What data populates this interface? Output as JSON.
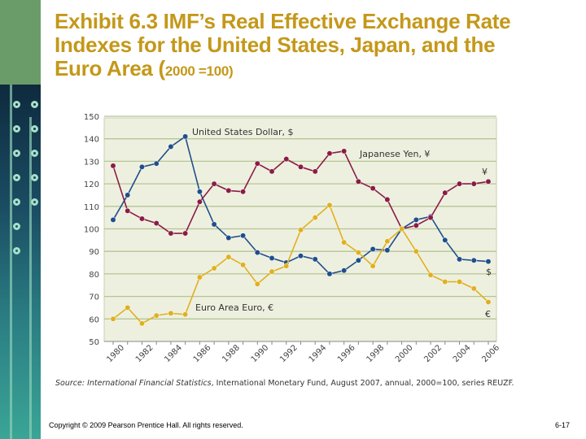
{
  "slide": {
    "title_main": "Exhibit 6.3  IMF’s Real Effective Exchange Rate Indexes for the United States, Japan, and the Euro Area (",
    "title_small": "2000 =100)",
    "source_label": "Source:",
    "source_italic": "International Financial Statistics",
    "source_rest": ", International Monetary Fund, August 2007, annual, 2000=100, series REUZF.",
    "copyright": "Copyright © 2009 Pearson Prentice Hall. All rights reserved.",
    "page_number": "6-17"
  },
  "chart_data": {
    "type": "line",
    "title": "",
    "xlabel": "",
    "ylabel": "",
    "x": [
      1980,
      1981,
      1982,
      1983,
      1984,
      1985,
      1986,
      1987,
      1988,
      1989,
      1990,
      1991,
      1992,
      1993,
      1994,
      1995,
      1996,
      1997,
      1998,
      1999,
      2000,
      2001,
      2002,
      2003,
      2004,
      2005,
      2006
    ],
    "xticks": [
      "1980",
      "1982",
      "1984",
      "1986",
      "1988",
      "1990",
      "1992",
      "1994",
      "1996",
      "1998",
      "2000",
      "2002",
      "2004",
      "2006"
    ],
    "yticks": [
      "50",
      "60",
      "70",
      "80",
      "90",
      "100",
      "110",
      "120",
      "130",
      "140",
      "150"
    ],
    "ylim": [
      50,
      150
    ],
    "grid": true,
    "series": [
      {
        "name": "United States Dollar, $",
        "end_label": "$",
        "color": "#1f4e8c",
        "values": [
          104,
          115,
          127.5,
          129,
          136.5,
          141,
          116.5,
          102,
          96,
          97,
          89.5,
          87,
          85,
          88,
          86.5,
          80,
          81.5,
          86,
          91,
          90.5,
          100,
          104,
          105.5,
          95,
          86.5,
          86,
          85.5
        ]
      },
      {
        "name": "Japanese Yen, ¥",
        "end_label": "¥",
        "color": "#8a1c45",
        "values": [
          128,
          108,
          104.5,
          102.5,
          98,
          98,
          112,
          120,
          117,
          116.5,
          129,
          125.5,
          131,
          127.5,
          125.5,
          133.5,
          134.5,
          121,
          118,
          113,
          100,
          101.5,
          105,
          116,
          120,
          120,
          121
        ]
      },
      {
        "name": "Euro Area Euro, €",
        "end_label": "€",
        "color": "#e0b020",
        "values": [
          60,
          65,
          58,
          61.5,
          62.5,
          62,
          78.5,
          82.5,
          87.5,
          84,
          75.5,
          81,
          83.5,
          99.5,
          105,
          110.5,
          94,
          89.5,
          83.5,
          94.5,
          100,
          90,
          79.5,
          76.5,
          76.5,
          73.5,
          67.5
        ]
      }
    ]
  }
}
